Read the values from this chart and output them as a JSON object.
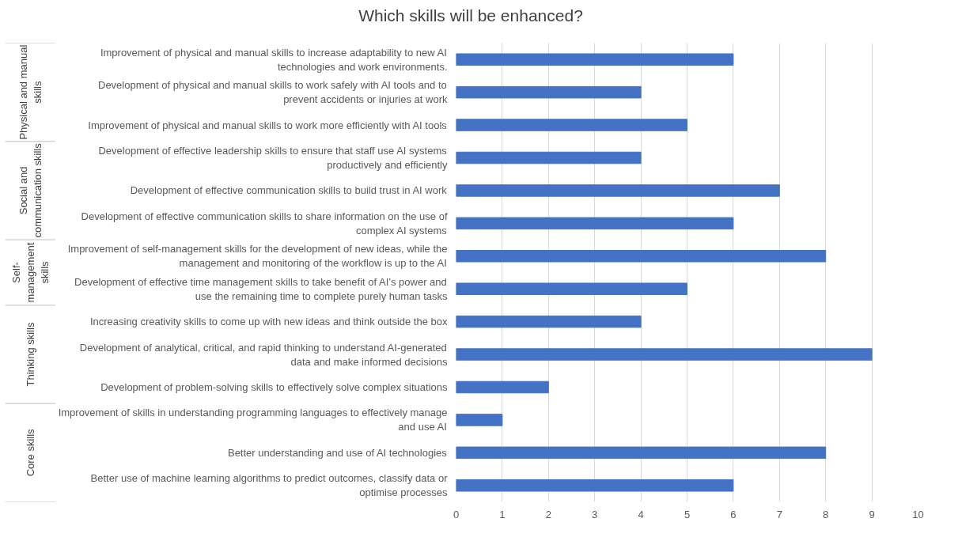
{
  "chart_data": {
    "type": "bar",
    "orientation": "horizontal",
    "title": "Which skills will be enhanced?",
    "categories": [
      "Improvement of physical and manual skills to increase adaptability to new AI technologies and work environments.",
      "Development of physical and manual skills to work safely with AI tools and to prevent accidents or injuries at work",
      "Improvement of physical and manual skills to work more efficiently with AI tools",
      "Development of effective leadership skills to ensure that staff use AI systems productively and efficiently",
      "Development of effective communication skills to build trust in AI work",
      "Development of effective communication skills to share information on the use of complex AI systems",
      "Improvement of self-management skills for the development of new ideas, while the management and monitoring of the workflow is up to the AI",
      "Development of effective time management skills to take benefit of AI’s power and use the remaining time to complete purely human tasks",
      "Increasing creativity skills to come up with new ideas and think outside the box",
      "Development of analytical, critical, and rapid thinking to understand AI-generated data and make informed decisions",
      "Development of problem-solving skills to effectively solve complex situations",
      "Improvement of skills in understanding programming languages to effectively manage and use AI",
      "Better understanding and use of AI technologies",
      "Better use of machine learning algorithms to predict outcomes, classify data or optimise processes"
    ],
    "values": [
      6,
      4,
      5,
      4,
      7,
      6,
      8,
      5,
      4,
      9,
      2,
      1,
      8,
      6
    ],
    "color": "#4472c4",
    "xlim": [
      0,
      10
    ],
    "xticks": [
      0,
      1,
      2,
      3,
      4,
      5,
      6,
      7,
      8,
      9,
      10
    ],
    "grid": "x",
    "annotations": [
      "Physical and manual skills",
      "Social and communication skills",
      "Self-management skills",
      "Thinking skills",
      "Core skills"
    ]
  }
}
